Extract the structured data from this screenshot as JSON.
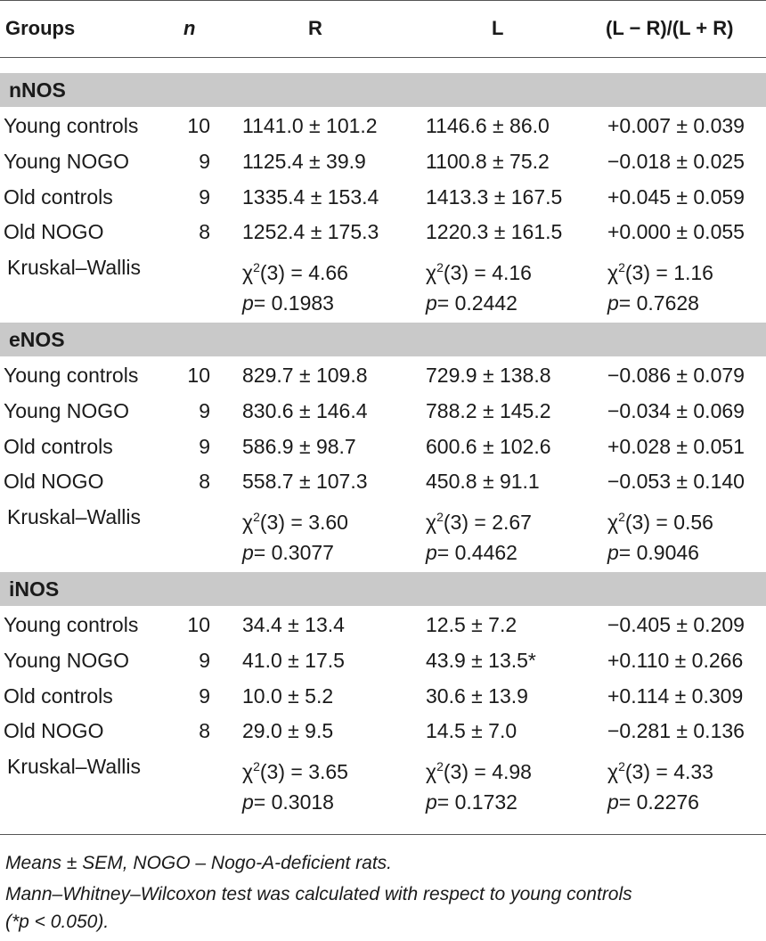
{
  "headers": [
    "Groups",
    "n",
    "R",
    "L",
    "(L − R)/(L + R)"
  ],
  "sections": [
    {
      "title": "nNOS",
      "rows": [
        {
          "group": "Young controls",
          "n": "10",
          "R": "1141.0 ± 101.2",
          "L": "1146.6 ± 86.0",
          "LR": "+0.007 ± 0.039"
        },
        {
          "group": "Young NOGO",
          "n": "9",
          "R": "1125.4 ± 39.9",
          "L": "1100.8 ± 75.2",
          "LR": "−0.018 ± 0.025"
        },
        {
          "group": "Old controls",
          "n": "9",
          "R": "1335.4 ± 153.4",
          "L": "1413.3 ± 167.5",
          "LR": "+0.045 ± 0.059"
        },
        {
          "group": "Old NOGO",
          "n": "8",
          "R": "1252.4 ± 175.3",
          "L": "1220.3 ± 161.5",
          "LR": "+0.000 ± 0.055"
        }
      ],
      "kw": {
        "label": "Kruskal–Wallis",
        "R": "= 4.66",
        "L": "= 4.16",
        "LR": "= 1.16"
      },
      "p": {
        "R": "= 0.1983",
        "L": "= 0.2442",
        "LR": "= 0.7628"
      }
    },
    {
      "title": "eNOS",
      "rows": [
        {
          "group": "Young controls",
          "n": "10",
          "R": "829.7 ± 109.8",
          "L": "729.9 ± 138.8",
          "LR": "−0.086 ± 0.079"
        },
        {
          "group": "Young NOGO",
          "n": "9",
          "R": "830.6 ± 146.4",
          "L": "788.2 ± 145.2",
          "LR": "−0.034 ± 0.069"
        },
        {
          "group": "Old controls",
          "n": "9",
          "R": "586.9 ± 98.7",
          "L": "600.6 ± 102.6",
          "LR": "+0.028 ± 0.051"
        },
        {
          "group": "Old NOGO",
          "n": "8",
          "R": "558.7 ± 107.3",
          "L": "450.8 ± 91.1",
          "LR": "−0.053 ± 0.140"
        }
      ],
      "kw": {
        "label": "Kruskal–Wallis",
        "R": "= 3.60",
        "L": "= 2.67",
        "LR": "= 0.56"
      },
      "p": {
        "R": "= 0.3077",
        "L": "= 0.4462",
        "LR": "= 0.9046"
      }
    },
    {
      "title": "iNOS",
      "rows": [
        {
          "group": "Young controls",
          "n": "10",
          "R": "34.4 ± 13.4",
          "L": "12.5 ± 7.2",
          "LR": "−0.405 ± 0.209"
        },
        {
          "group": "Young NOGO",
          "n": "9",
          "R": "41.0 ± 17.5",
          "L": "43.9 ± 13.5*",
          "LR": "+0.110 ± 0.266"
        },
        {
          "group": "Old controls",
          "n": "9",
          "R": "10.0 ± 5.2",
          "L": "30.6 ± 13.9",
          "LR": "+0.114 ± 0.309"
        },
        {
          "group": "Old NOGO",
          "n": "8",
          "R": "29.0 ± 9.5",
          "L": "14.5 ± 7.0",
          "LR": "−0.281 ± 0.136"
        }
      ],
      "kw": {
        "label": "Kruskal–Wallis",
        "R": "= 3.65",
        "L": "= 4.98",
        "LR": "= 4.33"
      },
      "p": {
        "R": "= 0.3018",
        "L": "= 0.1732",
        "LR": "= 0.2276"
      }
    }
  ],
  "chi_symbol": "χ",
  "chi_sup": "2",
  "chi_df": "(3) ",
  "p_symbol": "p",
  "footnotes": [
    "Means ± SEM, NOGO – Nogo-A-deficient rats.",
    "Mann–Whitney–Wilcoxon test was calculated with respect to young controls",
    "(*p < 0.050)."
  ]
}
